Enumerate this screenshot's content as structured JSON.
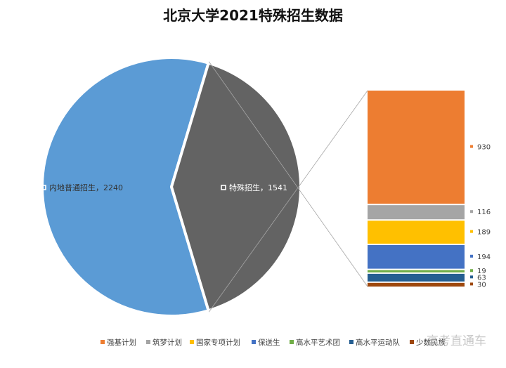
{
  "chart_data": {
    "type": "bar",
    "title": "北京大学2021特殊招生数据",
    "pie": [
      {
        "name": "内地普通招生",
        "value": 2240,
        "color": "#5B9BD5"
      },
      {
        "name": "特殊招生",
        "value": 1541,
        "color": "#636363"
      }
    ],
    "breakdown": [
      {
        "name": "强基计划",
        "value": 930,
        "color": "#ED7D31"
      },
      {
        "name": "筑梦计划",
        "value": 116,
        "color": "#A5A5A5"
      },
      {
        "name": "国家专项计划",
        "value": 189,
        "color": "#FFC000"
      },
      {
        "name": "保送生",
        "value": 194,
        "color": "#4472C4"
      },
      {
        "name": "高水平艺术团",
        "value": 19,
        "color": "#70AD47"
      },
      {
        "name": "高水平运动队",
        "value": 63,
        "color": "#255E91"
      },
      {
        "name": "少数民族",
        "value": 30,
        "color": "#9E480E"
      }
    ],
    "legend_position": "bottom"
  },
  "watermark": "高考直通车"
}
